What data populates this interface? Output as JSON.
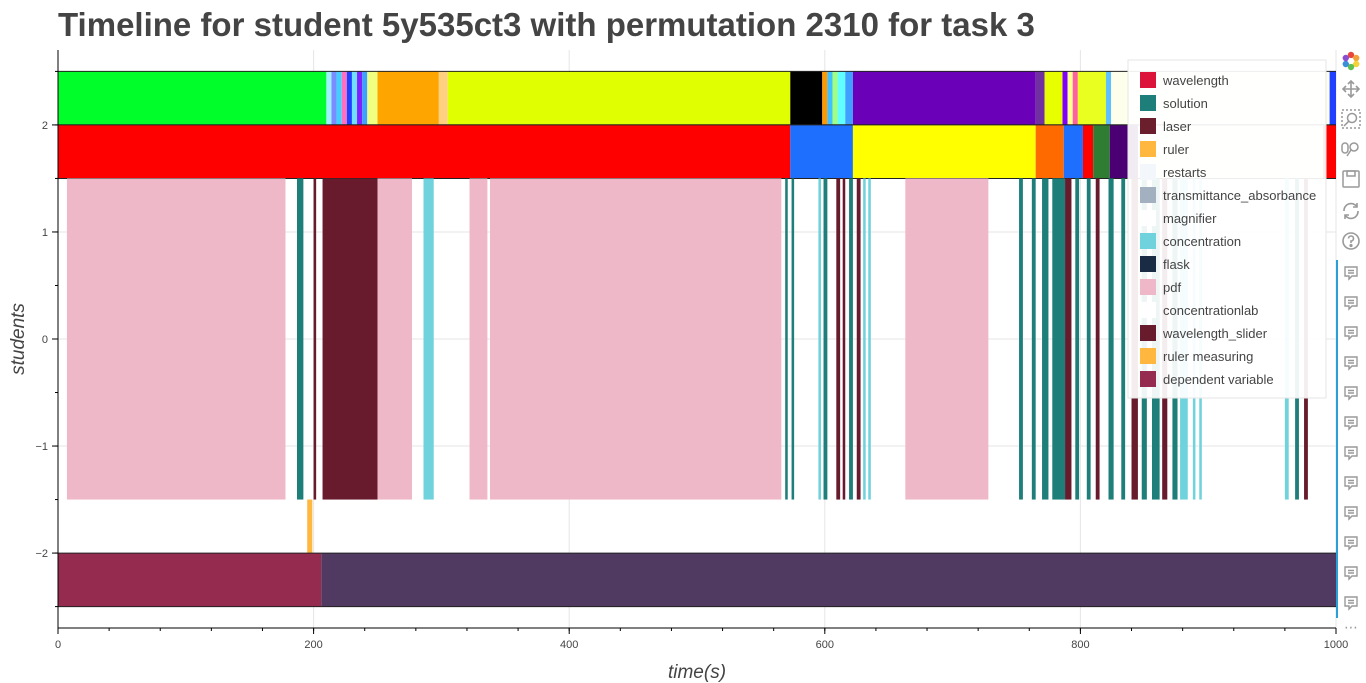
{
  "chart_data": {
    "type": "timeline",
    "title": "Timeline for student 5y535ct3 with permutation 2310 for task 3",
    "xlabel": "time(s)",
    "ylabel": "students",
    "xlim": [
      0,
      1000
    ],
    "ylim": [
      -2.7,
      2.7
    ],
    "x_ticks": [
      0,
      200,
      400,
      600,
      800,
      1000
    ],
    "y_ticks": [
      -2,
      -1,
      0,
      1,
      2
    ],
    "y_tick_labels": [
      "−2",
      "−1",
      "0",
      "1",
      "2"
    ],
    "grid": true,
    "legend_position": "top-right",
    "legend": [
      {
        "label": "wavelength",
        "color": "#dc143c"
      },
      {
        "label": "solution",
        "color": "#1e7f7a"
      },
      {
        "label": "laser",
        "color": "#6b1e2c"
      },
      {
        "label": "ruler",
        "color": "#ffb740"
      },
      {
        "label": "restarts",
        "color": "#f3f6fa"
      },
      {
        "label": "transmittance_absorbance",
        "color": "#a3b0c0"
      },
      {
        "label": "magnifier",
        "color": "#ffffff"
      },
      {
        "label": "concentration",
        "color": "#70d2dc"
      },
      {
        "label": "flask",
        "color": "#1a2b44"
      },
      {
        "label": "pdf",
        "color": "#efb8c8"
      },
      {
        "label": "concentrationlab",
        "color": "#ffffff"
      },
      {
        "label": "wavelength_slider",
        "color": "#681b2c"
      },
      {
        "label": "ruler measuring",
        "color": "#ffb740"
      },
      {
        "label": "dependent variable",
        "color": "#962b50"
      }
    ],
    "rows": [
      {
        "y_range": [
          2,
          2.5
        ],
        "segments": [
          {
            "start": 0,
            "end": 210,
            "color": "#00ff2a"
          },
          {
            "start": 210,
            "end": 214,
            "color": "#a0f0ff"
          },
          {
            "start": 214,
            "end": 218,
            "color": "#7a8cff"
          },
          {
            "start": 218,
            "end": 222,
            "color": "#40d0ff"
          },
          {
            "start": 222,
            "end": 226,
            "color": "#ff70c0"
          },
          {
            "start": 226,
            "end": 230,
            "color": "#2040ff"
          },
          {
            "start": 230,
            "end": 234,
            "color": "#70e0ff"
          },
          {
            "start": 234,
            "end": 238,
            "color": "#8020ff"
          },
          {
            "start": 238,
            "end": 242,
            "color": "#40a0ff"
          },
          {
            "start": 242,
            "end": 250,
            "color": "#f0ff80"
          },
          {
            "start": 250,
            "end": 298,
            "color": "#ffa500"
          },
          {
            "start": 298,
            "end": 305,
            "color": "#ffd080"
          },
          {
            "start": 305,
            "end": 573,
            "color": "#e0ff00"
          },
          {
            "start": 573,
            "end": 598,
            "color": "#000000"
          },
          {
            "start": 598,
            "end": 602,
            "color": "#ff9900"
          },
          {
            "start": 602,
            "end": 606,
            "color": "#40c0ff"
          },
          {
            "start": 606,
            "end": 610,
            "color": "#a0ff80"
          },
          {
            "start": 610,
            "end": 616,
            "color": "#60ffff"
          },
          {
            "start": 616,
            "end": 622,
            "color": "#40a0ff"
          },
          {
            "start": 622,
            "end": 765,
            "color": "#6a00b8"
          },
          {
            "start": 765,
            "end": 772,
            "color": "#7030a0"
          },
          {
            "start": 772,
            "end": 786,
            "color": "#e8ff00"
          },
          {
            "start": 786,
            "end": 790,
            "color": "#8000ff"
          },
          {
            "start": 790,
            "end": 794,
            "color": "#ffff90"
          },
          {
            "start": 794,
            "end": 798,
            "color": "#ff60a0"
          },
          {
            "start": 798,
            "end": 820,
            "color": "#e8ff20"
          },
          {
            "start": 820,
            "end": 824,
            "color": "#60c0ff"
          },
          {
            "start": 824,
            "end": 995,
            "color": "#fdffec"
          },
          {
            "start": 995,
            "end": 1000,
            "color": "#2040ff"
          }
        ]
      },
      {
        "y_range": [
          1.5,
          2
        ],
        "segments": [
          {
            "start": 0,
            "end": 573,
            "color": "#ff0000"
          },
          {
            "start": 573,
            "end": 622,
            "color": "#1f6fff"
          },
          {
            "start": 622,
            "end": 765,
            "color": "#ffff00"
          },
          {
            "start": 765,
            "end": 787,
            "color": "#ff6a00"
          },
          {
            "start": 787,
            "end": 802,
            "color": "#1f6fff"
          },
          {
            "start": 802,
            "end": 810,
            "color": "#ff0000"
          },
          {
            "start": 810,
            "end": 823,
            "color": "#2e7d32"
          },
          {
            "start": 823,
            "end": 845,
            "color": "#4a0072"
          },
          {
            "start": 845,
            "end": 915,
            "color": "#fffff0"
          },
          {
            "start": 915,
            "end": 990,
            "color": "#ffffe0"
          },
          {
            "start": 990,
            "end": 1000,
            "color": "#ff0000"
          }
        ]
      },
      {
        "y_range": [
          -1.5,
          1.5
        ],
        "segments": [
          {
            "start": 7,
            "end": 178,
            "color": "#efb8c8"
          },
          {
            "start": 187,
            "end": 192,
            "color": "#1e7f7a"
          },
          {
            "start": 200,
            "end": 202,
            "color": "#681b2c"
          },
          {
            "start": 207,
            "end": 250,
            "color": "#681b2c"
          },
          {
            "start": 250,
            "end": 277,
            "color": "#efb8c8"
          },
          {
            "start": 286,
            "end": 294,
            "color": "#70d2dc"
          },
          {
            "start": 322,
            "end": 336,
            "color": "#efb8c8"
          },
          {
            "start": 338,
            "end": 566,
            "color": "#efb8c8"
          },
          {
            "start": 569,
            "end": 571,
            "color": "#1e7f7a"
          },
          {
            "start": 574,
            "end": 576,
            "color": "#1e7f7a"
          },
          {
            "start": 595,
            "end": 597,
            "color": "#70d2dc"
          },
          {
            "start": 599,
            "end": 602,
            "color": "#1e7f7a"
          },
          {
            "start": 609,
            "end": 612,
            "color": "#681b2c"
          },
          {
            "start": 614,
            "end": 616,
            "color": "#681b2c"
          },
          {
            "start": 619,
            "end": 622,
            "color": "#1e7f7a"
          },
          {
            "start": 625,
            "end": 628,
            "color": "#681b2c"
          },
          {
            "start": 630,
            "end": 632,
            "color": "#70d2dc"
          },
          {
            "start": 634,
            "end": 636,
            "color": "#70d2dc"
          },
          {
            "start": 663,
            "end": 728,
            "color": "#efb8c8"
          },
          {
            "start": 752,
            "end": 755,
            "color": "#1e7f7a"
          },
          {
            "start": 762,
            "end": 765,
            "color": "#1e7f7a"
          },
          {
            "start": 770,
            "end": 775,
            "color": "#1e7f7a"
          },
          {
            "start": 778,
            "end": 788,
            "color": "#1e7f7a"
          },
          {
            "start": 788,
            "end": 793,
            "color": "#681b2c"
          },
          {
            "start": 796,
            "end": 799,
            "color": "#1e7f7a"
          },
          {
            "start": 805,
            "end": 808,
            "color": "#1e7f7a"
          },
          {
            "start": 812,
            "end": 815,
            "color": "#681b2c"
          },
          {
            "start": 822,
            "end": 826,
            "color": "#1e7f7a"
          },
          {
            "start": 832,
            "end": 835,
            "color": "#1e7f7a"
          },
          {
            "start": 840,
            "end": 845,
            "color": "#681b2c"
          },
          {
            "start": 848,
            "end": 852,
            "color": "#1e7f7a"
          },
          {
            "start": 856,
            "end": 862,
            "color": "#1e7f7a"
          },
          {
            "start": 864,
            "end": 868,
            "color": "#681b2c"
          },
          {
            "start": 872,
            "end": 876,
            "color": "#1e7f7a"
          },
          {
            "start": 878,
            "end": 884,
            "color": "#70d2dc"
          },
          {
            "start": 888,
            "end": 890,
            "color": "#70d2dc"
          },
          {
            "start": 893,
            "end": 895,
            "color": "#70d2dc"
          },
          {
            "start": 960,
            "end": 963,
            "color": "#70d2dc"
          },
          {
            "start": 968,
            "end": 971,
            "color": "#1e7f7a"
          },
          {
            "start": 975,
            "end": 978,
            "color": "#681b2c"
          }
        ]
      },
      {
        "y_range": [
          -2.05,
          -1.5
        ],
        "segments": [
          {
            "start": 195,
            "end": 199,
            "color": "#ffb740"
          }
        ]
      },
      {
        "y_range": [
          -2.5,
          -2
        ],
        "segments": [
          {
            "start": 0,
            "end": 206,
            "color": "#962b50"
          },
          {
            "start": 206,
            "end": 1000,
            "color": "#513a62"
          }
        ]
      }
    ]
  },
  "toolbar": {
    "tools": [
      {
        "name": "bokeh-logo-icon"
      },
      {
        "name": "pan-icon"
      },
      {
        "name": "box-zoom-icon"
      },
      {
        "name": "wheel-zoom-icon"
      },
      {
        "name": "save-icon"
      },
      {
        "name": "reset-icon"
      },
      {
        "name": "help-icon"
      }
    ],
    "hover_tool_count": 12,
    "more_label": "⋯"
  }
}
